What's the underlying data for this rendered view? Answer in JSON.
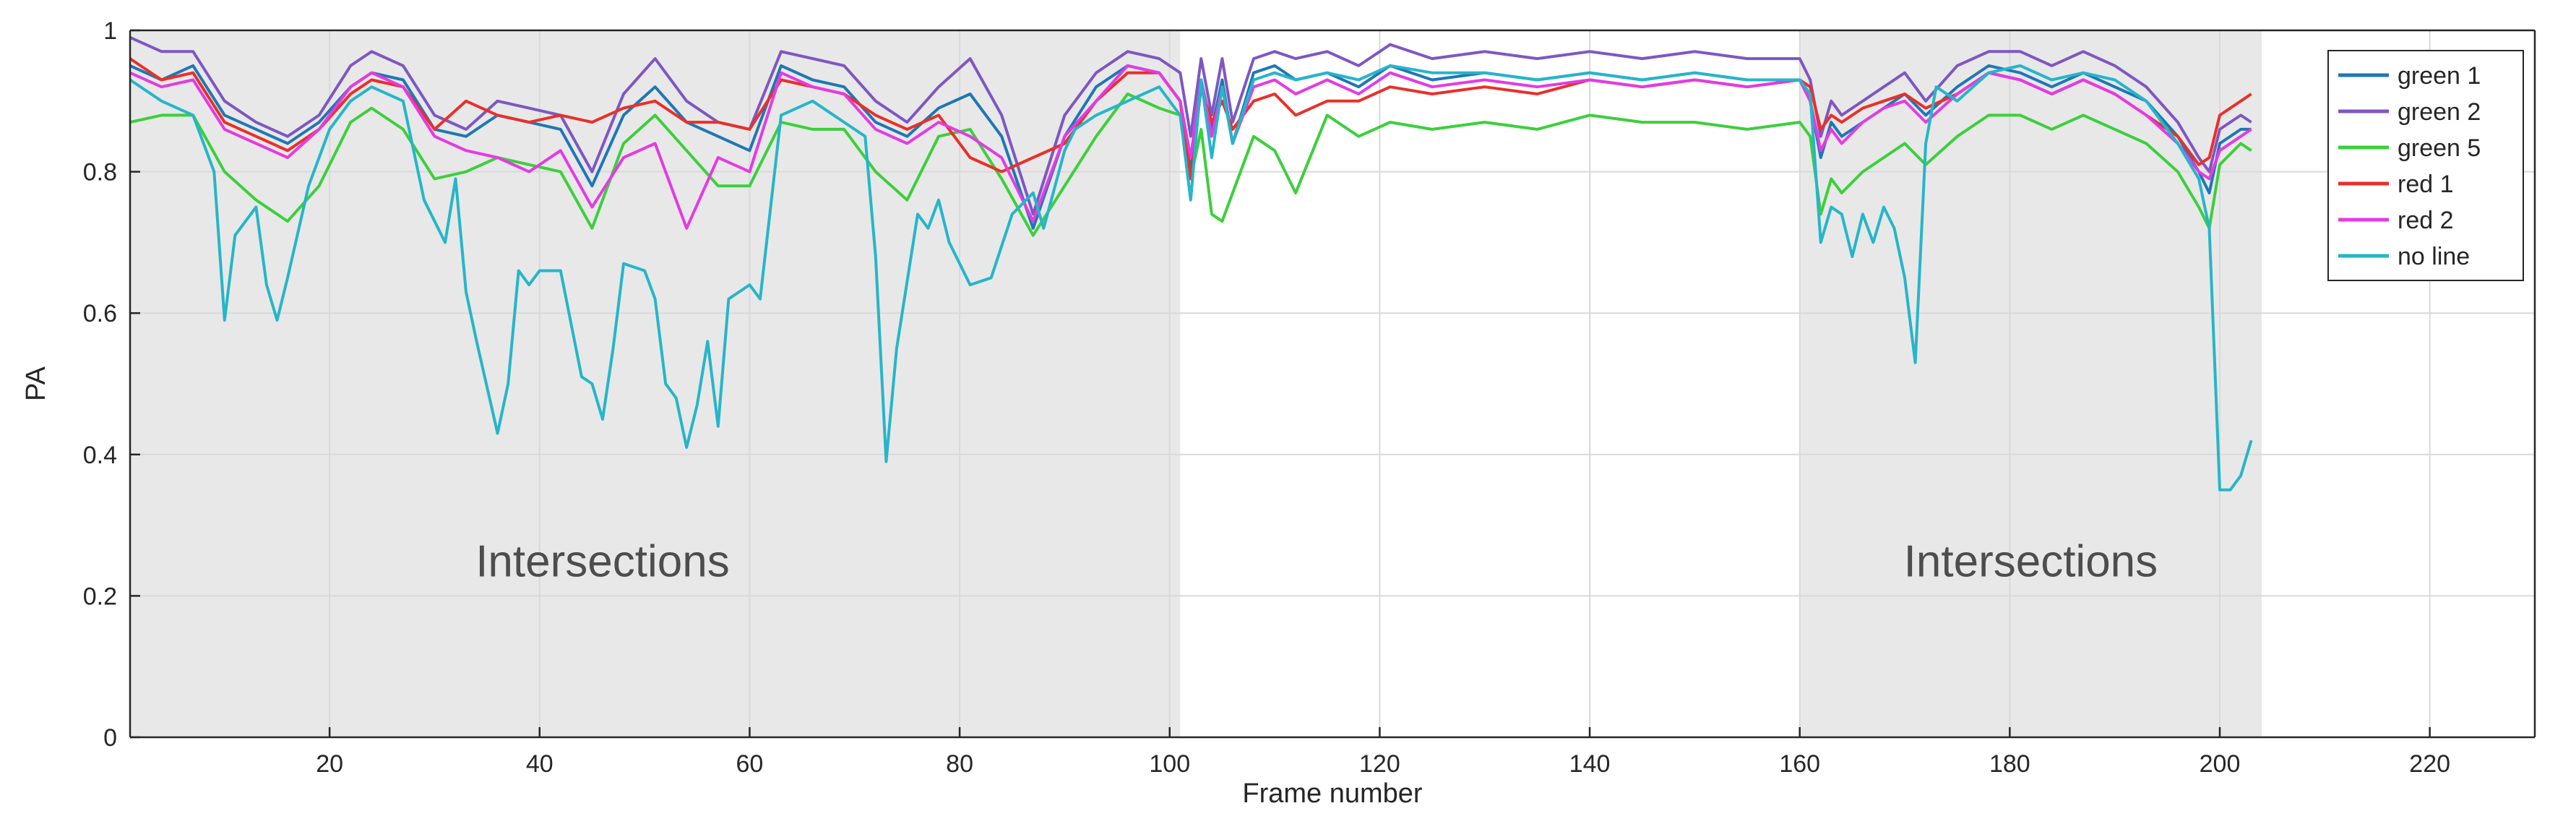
{
  "chart_data": {
    "type": "line",
    "title": "",
    "xlabel": "Frame number",
    "ylabel": "PA",
    "xlim": [
      1,
      230
    ],
    "ylim": [
      0,
      1
    ],
    "xticks": [
      20,
      40,
      60,
      80,
      100,
      120,
      140,
      160,
      180,
      200,
      220
    ],
    "yticks": [
      0,
      0.2,
      0.4,
      0.6,
      0.8,
      1
    ],
    "ytick_labels": [
      "0",
      "0.2",
      "0.4",
      "0.6",
      "0.8",
      "1"
    ],
    "grid": true,
    "legend_position": "top-right",
    "shaded_regions": [
      {
        "x_start": 1,
        "x_end": 101,
        "label": "Intersections",
        "label_x": 46,
        "label_y": 0.25,
        "color": "#e8e8e8"
      },
      {
        "x_start": 160,
        "x_end": 204,
        "label": "Intersections",
        "label_x": 182,
        "label_y": 0.25,
        "color": "#e8e8e8"
      }
    ],
    "series": [
      {
        "name": "green 1",
        "color": "#1f77b4",
        "x": [
          1,
          4,
          7,
          10,
          13,
          16,
          19,
          22,
          24,
          27,
          30,
          33,
          36,
          39,
          42,
          45,
          48,
          51,
          54,
          57,
          60,
          63,
          66,
          69,
          72,
          75,
          78,
          81,
          84,
          87,
          90,
          93,
          96,
          99,
          101,
          102,
          103,
          104,
          105,
          106,
          108,
          110,
          112,
          115,
          118,
          121,
          125,
          130,
          135,
          140,
          145,
          150,
          155,
          160,
          161,
          162,
          163,
          164,
          166,
          168,
          170,
          172,
          175,
          178,
          181,
          184,
          187,
          190,
          193,
          196,
          198,
          199,
          200,
          202,
          203
        ],
        "y": [
          0.95,
          0.93,
          0.95,
          0.88,
          0.86,
          0.84,
          0.87,
          0.92,
          0.94,
          0.93,
          0.86,
          0.85,
          0.88,
          0.87,
          0.86,
          0.78,
          0.88,
          0.92,
          0.87,
          0.85,
          0.83,
          0.95,
          0.93,
          0.92,
          0.87,
          0.85,
          0.89,
          0.91,
          0.85,
          0.72,
          0.85,
          0.92,
          0.95,
          0.94,
          0.9,
          0.8,
          0.93,
          0.86,
          0.93,
          0.84,
          0.94,
          0.95,
          0.93,
          0.94,
          0.92,
          0.95,
          0.93,
          0.94,
          0.93,
          0.94,
          0.93,
          0.94,
          0.93,
          0.93,
          0.9,
          0.82,
          0.87,
          0.85,
          0.87,
          0.89,
          0.91,
          0.88,
          0.92,
          0.95,
          0.94,
          0.92,
          0.94,
          0.92,
          0.9,
          0.85,
          0.8,
          0.77,
          0.84,
          0.86,
          0.86
        ]
      },
      {
        "name": "green 2",
        "color": "#7e57c2",
        "x": [
          1,
          4,
          7,
          10,
          13,
          16,
          19,
          22,
          24,
          27,
          30,
          33,
          36,
          39,
          42,
          45,
          48,
          51,
          54,
          57,
          60,
          63,
          66,
          69,
          72,
          75,
          78,
          81,
          84,
          87,
          90,
          93,
          96,
          99,
          101,
          102,
          103,
          104,
          105,
          106,
          108,
          110,
          112,
          115,
          118,
          121,
          125,
          130,
          135,
          140,
          145,
          150,
          155,
          160,
          161,
          162,
          163,
          164,
          166,
          168,
          170,
          172,
          175,
          178,
          181,
          184,
          187,
          190,
          193,
          196,
          198,
          199,
          200,
          202,
          203
        ],
        "y": [
          0.99,
          0.97,
          0.97,
          0.9,
          0.87,
          0.85,
          0.88,
          0.95,
          0.97,
          0.95,
          0.88,
          0.86,
          0.9,
          0.89,
          0.88,
          0.8,
          0.91,
          0.96,
          0.9,
          0.87,
          0.86,
          0.97,
          0.96,
          0.95,
          0.9,
          0.87,
          0.92,
          0.96,
          0.88,
          0.74,
          0.88,
          0.94,
          0.97,
          0.96,
          0.94,
          0.85,
          0.96,
          0.88,
          0.96,
          0.87,
          0.96,
          0.97,
          0.96,
          0.97,
          0.95,
          0.98,
          0.96,
          0.97,
          0.96,
          0.97,
          0.96,
          0.97,
          0.96,
          0.96,
          0.93,
          0.85,
          0.9,
          0.88,
          0.9,
          0.92,
          0.94,
          0.9,
          0.95,
          0.97,
          0.97,
          0.95,
          0.97,
          0.95,
          0.92,
          0.87,
          0.82,
          0.8,
          0.86,
          0.88,
          0.87
        ]
      },
      {
        "name": "green 5",
        "color": "#3ccf3c",
        "x": [
          1,
          4,
          7,
          10,
          13,
          16,
          19,
          22,
          24,
          27,
          30,
          33,
          36,
          39,
          42,
          45,
          48,
          51,
          54,
          57,
          60,
          63,
          66,
          69,
          72,
          75,
          78,
          81,
          84,
          87,
          90,
          93,
          96,
          99,
          101,
          102,
          103,
          104,
          105,
          106,
          108,
          110,
          112,
          115,
          118,
          121,
          125,
          130,
          135,
          140,
          145,
          150,
          155,
          160,
          161,
          162,
          163,
          164,
          166,
          168,
          170,
          172,
          175,
          178,
          181,
          184,
          187,
          190,
          193,
          196,
          198,
          199,
          200,
          202,
          203
        ],
        "y": [
          0.87,
          0.88,
          0.88,
          0.8,
          0.76,
          0.73,
          0.78,
          0.87,
          0.89,
          0.86,
          0.79,
          0.8,
          0.82,
          0.81,
          0.8,
          0.72,
          0.84,
          0.88,
          0.83,
          0.78,
          0.78,
          0.87,
          0.86,
          0.86,
          0.8,
          0.76,
          0.85,
          0.86,
          0.79,
          0.71,
          0.78,
          0.85,
          0.91,
          0.89,
          0.88,
          0.79,
          0.86,
          0.74,
          0.73,
          0.77,
          0.85,
          0.83,
          0.77,
          0.88,
          0.85,
          0.87,
          0.86,
          0.87,
          0.86,
          0.88,
          0.87,
          0.87,
          0.86,
          0.87,
          0.85,
          0.74,
          0.79,
          0.77,
          0.8,
          0.82,
          0.84,
          0.81,
          0.85,
          0.88,
          0.88,
          0.86,
          0.88,
          0.86,
          0.84,
          0.8,
          0.75,
          0.72,
          0.81,
          0.84,
          0.83
        ]
      },
      {
        "name": "red 1",
        "color": "#e8302a",
        "x": [
          1,
          4,
          7,
          10,
          13,
          16,
          19,
          22,
          24,
          27,
          30,
          33,
          36,
          39,
          42,
          45,
          48,
          51,
          54,
          57,
          60,
          63,
          66,
          69,
          72,
          75,
          78,
          81,
          84,
          87,
          90,
          93,
          96,
          99,
          101,
          102,
          103,
          104,
          105,
          106,
          108,
          110,
          112,
          115,
          118,
          121,
          125,
          130,
          135,
          140,
          145,
          150,
          155,
          160,
          161,
          162,
          163,
          164,
          166,
          168,
          170,
          172,
          175,
          178,
          181,
          184,
          187,
          190,
          193,
          196,
          198,
          199,
          200,
          202,
          203
        ],
        "y": [
          0.96,
          0.93,
          0.94,
          0.87,
          0.85,
          0.83,
          0.86,
          0.91,
          0.93,
          0.92,
          0.86,
          0.9,
          0.88,
          0.87,
          0.88,
          0.87,
          0.89,
          0.9,
          0.87,
          0.87,
          0.86,
          0.93,
          0.92,
          0.91,
          0.88,
          0.86,
          0.88,
          0.82,
          0.8,
          0.82,
          0.84,
          0.9,
          0.94,
          0.94,
          0.9,
          0.79,
          0.92,
          0.87,
          0.9,
          0.86,
          0.9,
          0.91,
          0.88,
          0.9,
          0.9,
          0.92,
          0.91,
          0.92,
          0.91,
          0.93,
          0.92,
          0.93,
          0.92,
          0.93,
          0.92,
          0.86,
          0.88,
          0.87,
          0.89,
          0.9,
          0.91,
          0.89,
          0.91,
          0.94,
          0.93,
          0.91,
          0.93,
          0.91,
          0.88,
          0.85,
          0.81,
          0.82,
          0.88,
          0.9,
          0.91
        ]
      },
      {
        "name": "red 2",
        "color": "#e33be3",
        "x": [
          1,
          4,
          7,
          10,
          13,
          16,
          19,
          22,
          24,
          27,
          30,
          33,
          36,
          39,
          42,
          45,
          48,
          51,
          54,
          57,
          60,
          63,
          66,
          69,
          72,
          75,
          78,
          81,
          84,
          87,
          90,
          93,
          96,
          99,
          101,
          102,
          103,
          104,
          105,
          106,
          108,
          110,
          112,
          115,
          118,
          121,
          125,
          130,
          135,
          140,
          145,
          150,
          155,
          160,
          161,
          162,
          163,
          164,
          166,
          168,
          170,
          172,
          175,
          178,
          181,
          184,
          187,
          190,
          193,
          196,
          198,
          199,
          200,
          202,
          203
        ],
        "y": [
          0.94,
          0.92,
          0.93,
          0.86,
          0.84,
          0.82,
          0.86,
          0.92,
          0.94,
          0.92,
          0.85,
          0.83,
          0.82,
          0.8,
          0.83,
          0.75,
          0.82,
          0.84,
          0.72,
          0.82,
          0.8,
          0.94,
          0.92,
          0.91,
          0.86,
          0.84,
          0.87,
          0.85,
          0.82,
          0.73,
          0.85,
          0.9,
          0.95,
          0.94,
          0.9,
          0.82,
          0.93,
          0.85,
          0.92,
          0.84,
          0.92,
          0.93,
          0.91,
          0.93,
          0.91,
          0.94,
          0.92,
          0.93,
          0.92,
          0.93,
          0.92,
          0.93,
          0.92,
          0.93,
          0.9,
          0.83,
          0.86,
          0.84,
          0.87,
          0.89,
          0.9,
          0.87,
          0.91,
          0.94,
          0.93,
          0.91,
          0.93,
          0.91,
          0.88,
          0.84,
          0.8,
          0.79,
          0.83,
          0.85,
          0.86
        ]
      },
      {
        "name": "no line",
        "color": "#26b5c9",
        "x": [
          1,
          4,
          7,
          9,
          10,
          11,
          13,
          14,
          15,
          16,
          18,
          20,
          22,
          24,
          27,
          29,
          31,
          32,
          33,
          34,
          36,
          37,
          38,
          39,
          40,
          42,
          44,
          45,
          46,
          47,
          48,
          50,
          51,
          52,
          53,
          54,
          55,
          56,
          57,
          58,
          60,
          61,
          63,
          66,
          69,
          71,
          72,
          73,
          74,
          76,
          77,
          78,
          79,
          81,
          83,
          85,
          87,
          88,
          90,
          91,
          93,
          96,
          99,
          101,
          102,
          103,
          104,
          105,
          106,
          108,
          110,
          112,
          115,
          118,
          121,
          125,
          130,
          135,
          140,
          145,
          150,
          155,
          160,
          161,
          162,
          163,
          164,
          165,
          166,
          167,
          168,
          169,
          170,
          171,
          172,
          173,
          175,
          178,
          181,
          184,
          187,
          190,
          193,
          196,
          198,
          199,
          200,
          201,
          202,
          203
        ],
        "y": [
          0.93,
          0.9,
          0.88,
          0.8,
          0.59,
          0.71,
          0.75,
          0.64,
          0.59,
          0.65,
          0.78,
          0.86,
          0.9,
          0.92,
          0.9,
          0.76,
          0.7,
          0.79,
          0.63,
          0.56,
          0.43,
          0.5,
          0.66,
          0.64,
          0.66,
          0.66,
          0.51,
          0.5,
          0.45,
          0.55,
          0.67,
          0.66,
          0.62,
          0.5,
          0.48,
          0.41,
          0.47,
          0.56,
          0.44,
          0.62,
          0.64,
          0.62,
          0.88,
          0.9,
          0.87,
          0.85,
          0.68,
          0.39,
          0.55,
          0.74,
          0.72,
          0.76,
          0.7,
          0.64,
          0.65,
          0.74,
          0.77,
          0.72,
          0.83,
          0.86,
          0.88,
          0.9,
          0.92,
          0.88,
          0.76,
          0.93,
          0.82,
          0.92,
          0.84,
          0.93,
          0.94,
          0.93,
          0.94,
          0.93,
          0.95,
          0.94,
          0.94,
          0.93,
          0.94,
          0.93,
          0.94,
          0.93,
          0.93,
          0.91,
          0.7,
          0.75,
          0.74,
          0.68,
          0.74,
          0.7,
          0.75,
          0.72,
          0.65,
          0.53,
          0.84,
          0.92,
          0.9,
          0.94,
          0.95,
          0.93,
          0.94,
          0.93,
          0.9,
          0.84,
          0.79,
          0.72,
          0.35,
          0.35,
          0.37,
          0.42
        ]
      }
    ]
  }
}
